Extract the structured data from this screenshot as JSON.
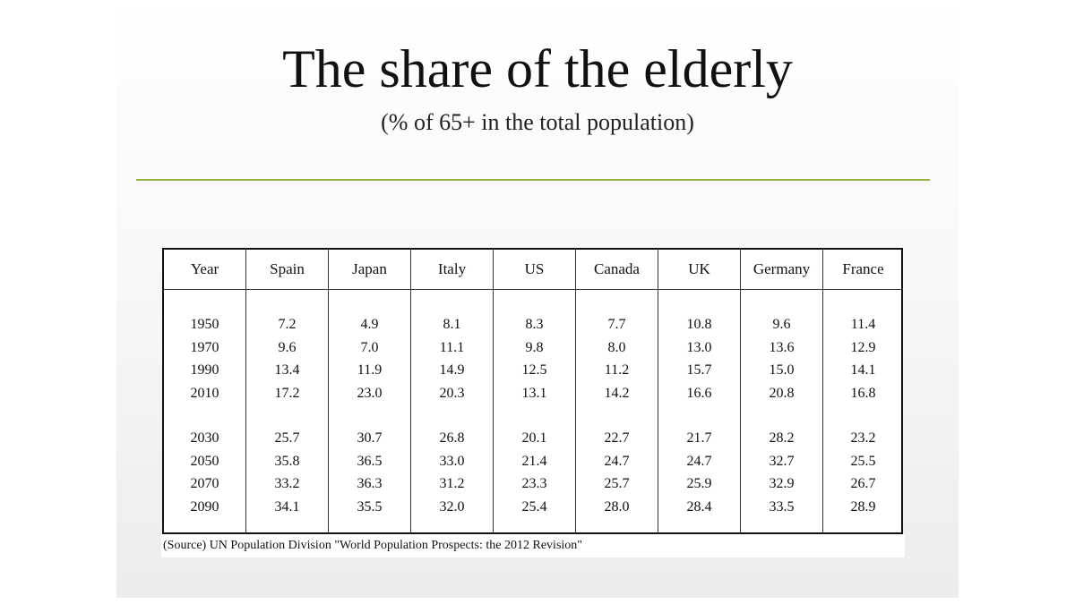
{
  "slide": {
    "title": "The share of the elderly",
    "subtitle": "(% of 65+ in the total population)",
    "source": "(Source) UN Population Division \"World Population Prospects: the 2012 Revision\"",
    "rule_color": "#98b33c"
  },
  "table": {
    "headers": [
      "Year",
      "Spain",
      "Japan",
      "Italy",
      "US",
      "Canada",
      "UK",
      "Germany",
      "France"
    ],
    "rows": [
      [
        "1950",
        "7.2",
        "4.9",
        "8.1",
        "8.3",
        "7.7",
        "10.8",
        "9.6",
        "11.4"
      ],
      [
        "1970",
        "9.6",
        "7.0",
        "11.1",
        "9.8",
        "8.0",
        "13.0",
        "13.6",
        "12.9"
      ],
      [
        "1990",
        "13.4",
        "11.9",
        "14.9",
        "12.5",
        "11.2",
        "15.7",
        "15.0",
        "14.1"
      ],
      [
        "2010",
        "17.2",
        "23.0",
        "20.3",
        "13.1",
        "14.2",
        "16.6",
        "20.8",
        "16.8"
      ],
      [
        "2030",
        "25.7",
        "30.7",
        "26.8",
        "20.1",
        "22.7",
        "21.7",
        "28.2",
        "23.2"
      ],
      [
        "2050",
        "35.8",
        "36.5",
        "33.0",
        "21.4",
        "24.7",
        "24.7",
        "32.7",
        "25.5"
      ],
      [
        "2070",
        "33.2",
        "36.3",
        "31.2",
        "23.3",
        "25.7",
        "25.9",
        "32.9",
        "26.7"
      ],
      [
        "2090",
        "34.1",
        "35.5",
        "32.0",
        "25.4",
        "28.0",
        "28.4",
        "33.5",
        "28.9"
      ]
    ]
  }
}
